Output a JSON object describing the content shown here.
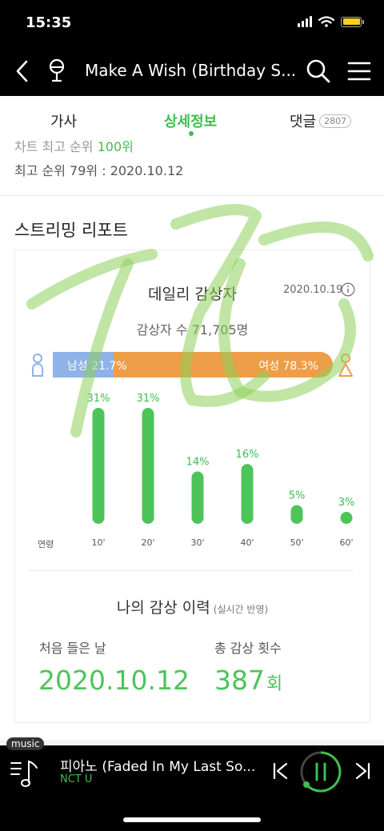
{
  "status": {
    "time": "15:35"
  },
  "header": {
    "title": "Make A Wish (Birthday S...",
    "icons": {
      "back": "chevron-left-icon",
      "mic": "microphone-icon",
      "search": "search-icon",
      "menu": "hamburger-menu-icon"
    }
  },
  "tabs": [
    {
      "label": "가사"
    },
    {
      "label": "상세정보"
    },
    {
      "label": "댓글",
      "badge": "2807"
    }
  ],
  "rank": {
    "cut_text_prefix": "차트 최고 순위",
    "cut_text_value": "100위",
    "best_text": "최고 순위 79위 : 2020.10.12"
  },
  "streaming": {
    "section_title": "스트리밍 리포트",
    "daily": {
      "title": "데일리 감상자",
      "date": "2020.10.19",
      "listeners": "감상자 수 71,705명",
      "male_label": "남성 21.7%",
      "female_label": "여성 78.3%",
      "male_percent": 21.7,
      "female_percent": 78.3
    },
    "age_axis_label": "연령",
    "my_history": {
      "title": "나의 감상 이력",
      "subtitle": "(실시간 반영)",
      "first_label": "처음 들은 날",
      "first_value": "2020.10.12",
      "count_label": "총 감상 횟수",
      "count_value": "387",
      "count_unit": "회"
    }
  },
  "chart_data": {
    "type": "bar",
    "categories": [
      "10'",
      "20'",
      "30'",
      "40'",
      "50'",
      "60'"
    ],
    "values": [
      31,
      31,
      14,
      16,
      5,
      3
    ],
    "value_labels": [
      "31%",
      "31%",
      "14%",
      "16%",
      "5%",
      "3%"
    ],
    "xlabel": "연령",
    "ylabel": "",
    "ylim": [
      0,
      31
    ],
    "grid": false,
    "colors": {
      "bar": "#4cc45a"
    }
  },
  "player": {
    "tag": "music",
    "title": "피아노 (Faded In My Last So...",
    "artist": "NCT U",
    "icons": {
      "playlist": "playlist-icon",
      "prev": "skip-previous-icon",
      "play": "pause-icon",
      "next": "skip-next-icon"
    }
  },
  "colors": {
    "accent": "#3dbf4f",
    "male": "#8fb3e8",
    "female": "#ee9d48",
    "header_bg": "#000000"
  }
}
